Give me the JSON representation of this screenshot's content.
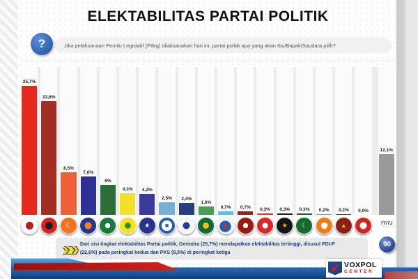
{
  "header": {
    "title": "ELEKTABILITAS PARTAI POLITIK"
  },
  "question": {
    "icon": "question-mark-icon",
    "glyph": "?",
    "text": "Jika pelaksanaan Pemilu Legislatif (Pileg) dilaksanakan hari ini, partai politik apa yang akan Ibu/Bapak/Saudara pilih?"
  },
  "chart_data": {
    "type": "bar",
    "title": "ELEKTABILITAS PARTAI POLITIK",
    "value_unit": "percent",
    "decimal_style": "comma",
    "ylim": [
      0,
      26
    ],
    "grid": false,
    "legend": "none",
    "x_axis_note": "categories shown as party logos; last gray bar labeled TT/TJ",
    "bars": [
      {
        "logo_icon": "gerindra-logo",
        "label": "25,7%",
        "value": 25.7,
        "bar_color": "#e42a1e",
        "logo_bg": "radial-gradient(circle,#a8241c 0 34%,#ffffff 35% 70%,#cc2a20 71% 100%)"
      },
      {
        "logo_icon": "pdip-logo",
        "label": "22,6%",
        "value": 22.6,
        "bar_color": "#a32d22",
        "logo_bg": "radial-gradient(circle,#1c1c1c 0 32%,#d0261c 33% 100%)"
      },
      {
        "logo_icon": "pks-logo",
        "label": "8,5%",
        "value": 8.5,
        "bar_color": "#ee5f3a",
        "logo_bg": "#ee7622",
        "glyph": "☾",
        "glyph_color": "#ffffff"
      },
      {
        "logo_icon": "nasdem-logo",
        "label": "7,6%",
        "value": 7.6,
        "bar_color": "#2e3191",
        "logo_bg": "radial-gradient(circle,#f58220 0 30%,#26348b 31% 100%)"
      },
      {
        "logo_icon": "pkb-logo",
        "label": "6%",
        "value": 6.0,
        "bar_color": "#2c6e3a",
        "logo_bg": "radial-gradient(circle,#ffffff 0 22%,#1b7a3d 23% 100%)"
      },
      {
        "logo_icon": "golkar-logo",
        "label": "4,3%",
        "value": 4.3,
        "bar_color": "#f2e029",
        "logo_bg": "radial-gradient(circle,#2e8b3a 0 26%,#f6e31a 27% 100%)"
      },
      {
        "logo_icon": "demokrat-logo",
        "label": "4,2%",
        "value": 4.2,
        "bar_color": "#3c3a96",
        "logo_bg": "#27348b",
        "glyph": "★",
        "glyph_color": "#ffffff"
      },
      {
        "logo_icon": "pan-logo",
        "label": "2,5%",
        "value": 2.5,
        "bar_color": "#76aed6",
        "logo_bg": "radial-gradient(circle,#ffffff 0 46%,#2a5caa 47% 100%)",
        "glyph": "■",
        "glyph_color": "#2a5caa"
      },
      {
        "logo_icon": "perindo-logo",
        "label": "2,4%",
        "value": 2.4,
        "bar_color": "#24407f",
        "logo_bg": "radial-gradient(circle,#24407f 0 30%,#f4f6fb 31% 100%)"
      },
      {
        "logo_icon": "ppp-logo",
        "label": "1,6%",
        "value": 1.6,
        "bar_color": "#4c9e57",
        "logo_bg": "radial-gradient(circle,#f0c020 0 26%,#0f6b35 27% 100%)"
      },
      {
        "logo_icon": "gelora-logo",
        "label": "0,7%",
        "value": 0.7,
        "bar_color": "#49c8e8",
        "logo_bg": "radial-gradient(circle at 45% 55%,#d03028 0 18%,#2060b0 19% 45%,#eef4fb 46% 100%)"
      },
      {
        "logo_icon": "hanura-logo",
        "label": "0,7%",
        "value": 0.7,
        "bar_color": "#99201a",
        "logo_bg": "radial-gradient(circle,#ffffff 0 22%,#9c1812 23% 100%)"
      },
      {
        "logo_icon": "psi-logo",
        "label": "0,3%",
        "value": 0.3,
        "bar_color": "#d8372e",
        "logo_bg": "radial-gradient(circle,#ffffff 0 24%,#d42a28 25% 100%)"
      },
      {
        "logo_icon": "ummat-logo",
        "label": "0,3%",
        "value": 0.3,
        "bar_color": "#1c1c1c",
        "logo_bg": "#161616",
        "glyph": "★",
        "glyph_color": "#f0c030"
      },
      {
        "logo_icon": "pbb-logo",
        "label": "0,3%",
        "value": 0.3,
        "bar_color": "#1c5c30",
        "logo_bg": "#136b30",
        "glyph": "☾",
        "glyph_color": "#f5e9a0"
      },
      {
        "logo_icon": "buruh-logo",
        "label": "0,2%",
        "value": 0.2,
        "bar_color": "#e88020",
        "logo_bg": "radial-gradient(circle,#ffffff 0 28%,#ee7d18 29% 100%)"
      },
      {
        "logo_icon": "garuda-logo",
        "label": "0,2%",
        "value": 0.2,
        "bar_color": "#92271c",
        "logo_bg": "#8c1f14",
        "glyph": "▲",
        "glyph_color": "#e8b02c"
      },
      {
        "logo_icon": "pkn-logo",
        "label": "0,0%",
        "value": 0.0,
        "bar_color": "#cc2822",
        "logo_bg": "radial-gradient(circle,#ffffff 0 30%,#cc2822 31% 100%)"
      },
      {
        "logo_icon": null,
        "label": "12,1%",
        "value": 12.1,
        "bar_color": "#9a9a9a",
        "axis_label": "TT/TJ",
        "gap_before": true
      }
    ]
  },
  "footnote": {
    "chevron_icon": "double-chevron-icon",
    "chevron_glyph": "»»",
    "text": "Dari sisi tingkat elektabilitas Partai politik, Gerindra (25,7%) mendapatkan elektabilitas tertinggi, disusul PDI-P (22,6%) pada peringkat kedua dan PKS (8,5%) di peringkat ketiga"
  },
  "badge": {
    "value": "90"
  },
  "publisher": {
    "mark_icon": "voxpol-check-icon",
    "mark_glyph": "✔",
    "line1": "VOXPOL",
    "line2": "CENTER"
  },
  "colors": {
    "accent_blue": "#2f62ae",
    "note_text": "#1d3e7d",
    "banner_red": "#c01818",
    "tt_tj_gray": "#9a9a9a"
  }
}
